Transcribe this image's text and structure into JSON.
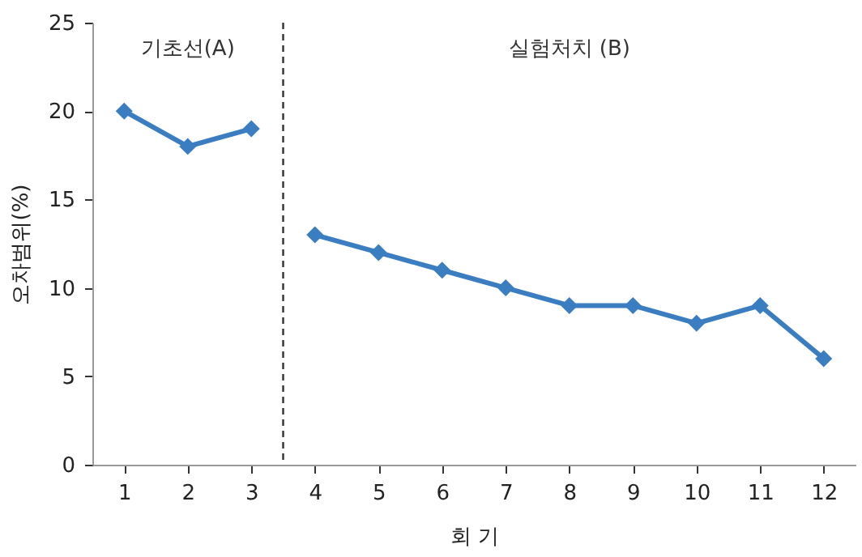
{
  "chart_data": {
    "type": "line",
    "xlabel": "회 기",
    "ylabel": "오차범위(%)",
    "series": [
      {
        "color": "#3a7dc0",
        "x": [
          1,
          2,
          3
        ],
        "values": [
          20,
          18,
          19
        ]
      },
      {
        "color": "#3a7dc0",
        "x": [
          4,
          5,
          6,
          7,
          8,
          9,
          10,
          11,
          12
        ],
        "values": [
          13,
          12,
          11,
          10,
          9,
          9,
          8,
          9,
          6
        ]
      }
    ],
    "xlim": [
      0.5,
      12.5
    ],
    "xticks": [
      1,
      2,
      3,
      4,
      5,
      6,
      7,
      8,
      9,
      10,
      11,
      12
    ],
    "ylim": [
      0,
      25
    ],
    "yticks": [
      0,
      5,
      10,
      15,
      20,
      25
    ],
    "ref_lines": [
      {
        "axis": "x",
        "value": 3.5,
        "line_style": "dashed",
        "color": "#333333"
      }
    ],
    "annotations": [
      "기초선(A)",
      "실험처치 (B)"
    ],
    "marker": "diamond",
    "line_style": "solid",
    "grid": false,
    "legend": false
  }
}
